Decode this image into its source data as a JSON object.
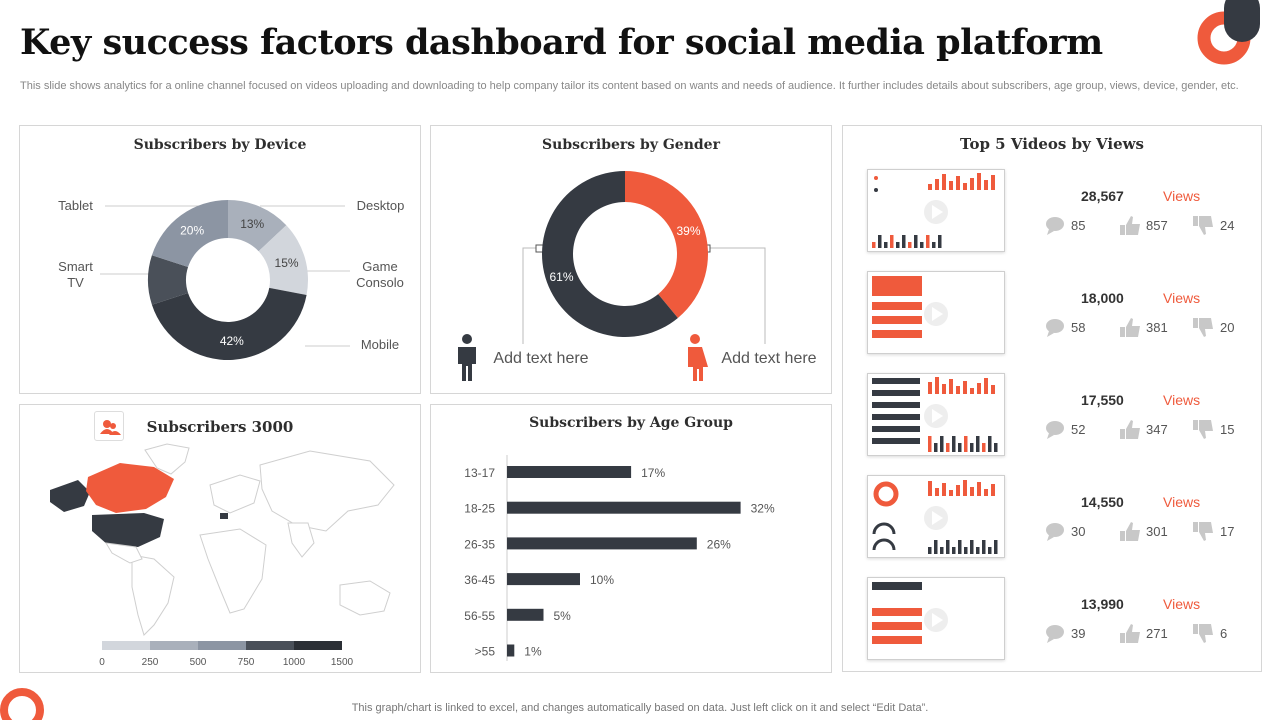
{
  "page": {
    "title": "Key success factors dashboard for social media platform",
    "subtitle": "This slide shows analytics for a online channel focused on videos uploading and downloading to help company tailor its content based on wants and needs of audience. It further includes details about subscribers, age group, views, device, gender, etc.",
    "footer": "This graph/chart is linked to excel,  and changes automatically based on data. Just left click on it and select “Edit Data”."
  },
  "colors": {
    "accent": "#ef5a3c",
    "dark": "#353a42",
    "mid": "#5a6170",
    "slate": "#8c95a3",
    "light": "#a9b0bb",
    "pale": "#d2d6dc"
  },
  "device": {
    "title": "Subscribers by Device",
    "labels": {
      "desktop": "Desktop",
      "game": "Game\nConsolo",
      "mobile": "Mobile",
      "smarttv": "Smart\nTV",
      "tablet": "Tablet"
    }
  },
  "gender": {
    "title": "Subscribers by Gender",
    "left_text": "Add text here",
    "right_text": "Add text here"
  },
  "map": {
    "title": "Subscribers 3000",
    "scale_labels": [
      "0",
      "250",
      "500",
      "750",
      "1000",
      "1500"
    ]
  },
  "age": {
    "title": "Subscribers by Age Group"
  },
  "videos": {
    "title": "Top 5 Videos by Views",
    "views_label": "Views",
    "items": [
      {
        "views": "28,567",
        "comments": "85",
        "likes": "857",
        "dislikes": "24"
      },
      {
        "views": "18,000",
        "comments": "58",
        "likes": "381",
        "dislikes": "20"
      },
      {
        "views": "17,550",
        "comments": "52",
        "likes": "347",
        "dislikes": "15"
      },
      {
        "views": "14,550",
        "comments": "30",
        "likes": "301",
        "dislikes": "17"
      },
      {
        "views": "13,990",
        "comments": "39",
        "likes": "271",
        "dislikes": "6"
      }
    ]
  },
  "chart_data": [
    {
      "type": "pie",
      "title": "Subscribers by Device",
      "categories": [
        "Desktop",
        "Game Consolo",
        "Mobile",
        "Smart TV",
        "Tablet"
      ],
      "values": [
        13,
        15,
        42,
        10,
        20
      ],
      "value_labels": [
        "13%",
        "15%",
        "42%",
        "",
        "20%"
      ],
      "colors": [
        "#a9b0bb",
        "#d2d6dc",
        "#353a42",
        "#4a5059",
        "#8c95a3"
      ]
    },
    {
      "type": "pie",
      "title": "Subscribers by Gender",
      "categories": [
        "Female",
        "Male"
      ],
      "values": [
        39,
        61
      ],
      "value_labels": [
        "39%",
        "61%"
      ],
      "colors": [
        "#ef5a3c",
        "#353a42"
      ]
    },
    {
      "type": "bar",
      "orientation": "horizontal",
      "title": "Subscribers by Age Group",
      "categories": [
        "13-17",
        "18-25",
        "26-35",
        "36-45",
        "56-55",
        ">55"
      ],
      "values": [
        17,
        32,
        26,
        10,
        5,
        1
      ],
      "value_labels": [
        "17%",
        "32%",
        "26%",
        "10%",
        "5%",
        "1%"
      ],
      "xlim": [
        0,
        40
      ]
    }
  ]
}
